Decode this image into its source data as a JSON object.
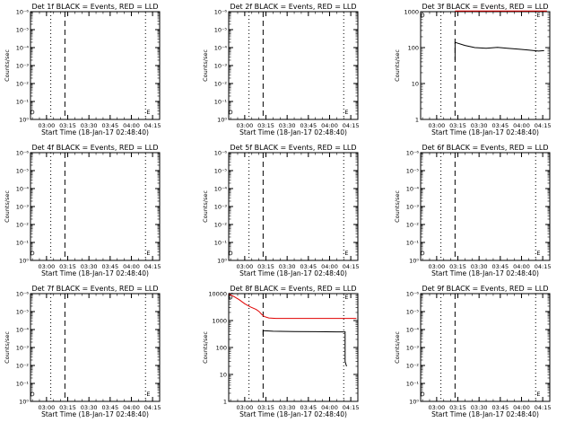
{
  "charts": [
    {
      "id": "det1f",
      "title": "Det 1f BLACK = Events, RED = LLD",
      "yscale": "log-exponent",
      "yticks": [
        "10⁰",
        "10⁻¹",
        "10⁻²",
        "10⁻³",
        "10⁻⁴",
        "10⁻⁵",
        "10⁻⁶"
      ],
      "ylabel": "Counts/sec",
      "xticks": [
        "03:00",
        "03:15",
        "03:30",
        "03:45",
        "04:00",
        "04:15"
      ],
      "xlabel": "Start Time (18-Jan-17 02:48:40)",
      "markers": [
        {
          "letter": "D",
          "time": "02:50"
        },
        {
          "letter": "E",
          "time": "04:12"
        }
      ],
      "vlines": [
        {
          "style": "dotted",
          "time": "03:03"
        },
        {
          "style": "dashed",
          "time": "03:13"
        },
        {
          "style": "dotted",
          "time": "04:10"
        }
      ],
      "series": []
    },
    {
      "id": "det2f",
      "title": "Det 2f BLACK = Events, RED = LLD",
      "yscale": "log-exponent",
      "yticks": [
        "10⁰",
        "10⁻¹",
        "10⁻²",
        "10⁻³",
        "10⁻⁴",
        "10⁻⁵",
        "10⁻⁶"
      ],
      "ylabel": "Counts/sec",
      "xticks": [
        "03:00",
        "03:15",
        "03:30",
        "03:45",
        "04:00",
        "04:15"
      ],
      "xlabel": "Start Time (18-Jan-17 02:48:40)",
      "markers": [
        {
          "letter": "D",
          "time": "02:50"
        },
        {
          "letter": "E",
          "time": "04:12"
        }
      ],
      "vlines": [
        {
          "style": "dotted",
          "time": "03:03"
        },
        {
          "style": "dashed",
          "time": "03:13"
        },
        {
          "style": "dotted",
          "time": "04:10"
        }
      ],
      "series": []
    },
    {
      "id": "det3f",
      "title": "Det 3f BLACK = Events, RED = LLD",
      "yscale": "log-value",
      "yticks": [
        "1",
        "10",
        "100",
        "1000"
      ],
      "ylabel": "Counts/sec",
      "xticks": [
        "03:00",
        "03:15",
        "03:30",
        "03:45",
        "04:00",
        "04:15"
      ],
      "xlabel": "Start Time (18-Jan-17 02:48:40)",
      "markers": [
        {
          "letter": "D",
          "time": "02:50"
        },
        {
          "letter": "E",
          "time": "04:12"
        }
      ],
      "vlines": [
        {
          "style": "dotted",
          "time": "03:03"
        },
        {
          "style": "dashed",
          "time": "03:13"
        },
        {
          "style": "dotted",
          "time": "04:10"
        }
      ],
      "series": [
        {
          "color": "#e00000",
          "points": [
            [
              "03:13",
              1050
            ],
            [
              "04:18",
              1050
            ]
          ]
        },
        {
          "color": "#000000",
          "points": [
            [
              "03:13",
              45
            ],
            [
              "03:13",
              140
            ],
            [
              "03:20",
              115
            ],
            [
              "03:27",
              100
            ],
            [
              "03:35",
              96
            ],
            [
              "03:43",
              102
            ],
            [
              "03:50",
              96
            ],
            [
              "03:58",
              90
            ],
            [
              "04:05",
              85
            ],
            [
              "04:12",
              80
            ],
            [
              "04:16",
              82
            ]
          ]
        }
      ]
    },
    {
      "id": "det4f",
      "title": "Det 4f BLACK = Events, RED = LLD",
      "yscale": "log-exponent",
      "yticks": [
        "10⁰",
        "10⁻¹",
        "10⁻²",
        "10⁻³",
        "10⁻⁴",
        "10⁻⁵",
        "10⁻⁶"
      ],
      "ylabel": "Counts/sec",
      "xticks": [
        "03:00",
        "03:15",
        "03:30",
        "03:45",
        "04:00",
        "04:15"
      ],
      "xlabel": "Start Time (18-Jan-17 02:48:40)",
      "markers": [
        {
          "letter": "D",
          "time": "02:50"
        },
        {
          "letter": "E",
          "time": "04:12"
        }
      ],
      "vlines": [
        {
          "style": "dotted",
          "time": "03:03"
        },
        {
          "style": "dashed",
          "time": "03:13"
        },
        {
          "style": "dotted",
          "time": "04:10"
        }
      ],
      "series": []
    },
    {
      "id": "det5f",
      "title": "Det 5f BLACK = Events, RED = LLD",
      "yscale": "log-exponent",
      "yticks": [
        "10⁰",
        "10⁻¹",
        "10⁻²",
        "10⁻³",
        "10⁻⁴",
        "10⁻⁵",
        "10⁻⁶"
      ],
      "ylabel": "Counts/sec",
      "xticks": [
        "03:00",
        "03:15",
        "03:30",
        "03:45",
        "04:00",
        "04:15"
      ],
      "xlabel": "Start Time (18-Jan-17 02:48:40)",
      "markers": [
        {
          "letter": "D",
          "time": "02:50"
        },
        {
          "letter": "E",
          "time": "04:12"
        }
      ],
      "vlines": [
        {
          "style": "dotted",
          "time": "03:03"
        },
        {
          "style": "dashed",
          "time": "03:13"
        },
        {
          "style": "dotted",
          "time": "04:10"
        }
      ],
      "series": []
    },
    {
      "id": "det6f",
      "title": "Det 6f BLACK = Events, RED = LLD",
      "yscale": "log-exponent",
      "yticks": [
        "10⁰",
        "10⁻¹",
        "10⁻²",
        "10⁻³",
        "10⁻⁴",
        "10⁻⁵",
        "10⁻⁶"
      ],
      "ylabel": "Counts/sec",
      "xticks": [
        "03:00",
        "03:15",
        "03:30",
        "03:45",
        "04:00",
        "04:15"
      ],
      "xlabel": "Start Time (18-Jan-17 02:48:40)",
      "markers": [
        {
          "letter": "D",
          "time": "02:50"
        },
        {
          "letter": "E",
          "time": "04:12"
        }
      ],
      "vlines": [
        {
          "style": "dotted",
          "time": "03:03"
        },
        {
          "style": "dashed",
          "time": "03:13"
        },
        {
          "style": "dotted",
          "time": "04:10"
        }
      ],
      "series": []
    },
    {
      "id": "det7f",
      "title": "Det 7f BLACK = Events, RED = LLD",
      "yscale": "log-exponent",
      "yticks": [
        "10⁰",
        "10⁻¹",
        "10⁻²",
        "10⁻³",
        "10⁻⁴",
        "10⁻⁵",
        "10⁻⁶"
      ],
      "ylabel": "Counts/sec",
      "xticks": [
        "03:00",
        "03:15",
        "03:30",
        "03:45",
        "04:00",
        "04:15"
      ],
      "xlabel": "Start Time (18-Jan-17 02:48:40)",
      "markers": [
        {
          "letter": "D",
          "time": "02:50"
        },
        {
          "letter": "E",
          "time": "04:12"
        }
      ],
      "vlines": [
        {
          "style": "dotted",
          "time": "03:03"
        },
        {
          "style": "dashed",
          "time": "03:13"
        },
        {
          "style": "dotted",
          "time": "04:10"
        }
      ],
      "series": []
    },
    {
      "id": "det8f",
      "title": "Det 8f BLACK = Events, RED = LLD",
      "yscale": "log-value",
      "yticks": [
        "1",
        "10",
        "100",
        "1000",
        "10000"
      ],
      "ylabel": "Counts/sec",
      "xticks": [
        "03:00",
        "03:15",
        "03:30",
        "03:45",
        "04:00",
        "04:15"
      ],
      "xlabel": "Start Time (18-Jan-17 02:48:40)",
      "markers": [
        {
          "letter": "D",
          "time": "02:50"
        },
        {
          "letter": "E",
          "time": "04:12"
        }
      ],
      "vlines": [
        {
          "style": "dotted",
          "time": "03:03"
        },
        {
          "style": "dashed",
          "time": "03:13"
        },
        {
          "style": "dotted",
          "time": "04:10"
        }
      ],
      "series": [
        {
          "color": "#e00000",
          "points": [
            [
              "02:49",
              9500
            ],
            [
              "02:52",
              8000
            ],
            [
              "02:56",
              6000
            ],
            [
              "03:00",
              4200
            ],
            [
              "03:04",
              3200
            ],
            [
              "03:08",
              2600
            ],
            [
              "03:10",
              2200
            ],
            [
              "03:12",
              1700
            ],
            [
              "03:14",
              1400
            ],
            [
              "03:17",
              1250
            ],
            [
              "03:22",
              1200
            ],
            [
              "03:40",
              1200
            ],
            [
              "04:00",
              1200
            ],
            [
              "04:19",
              1200
            ]
          ]
        },
        {
          "color": "#000000",
          "points": [
            [
              "02:49",
              10500
            ],
            [
              "02:50",
              9800
            ],
            [
              "02:51",
              10300
            ],
            [
              "02:52",
              9600
            ]
          ]
        },
        {
          "color": "#000000",
          "points": [
            [
              "03:13",
              250
            ],
            [
              "03:13",
              420
            ],
            [
              "03:20",
              400
            ],
            [
              "03:35",
              390
            ],
            [
              "03:50",
              385
            ],
            [
              "04:05",
              380
            ],
            [
              "04:11",
              380
            ],
            [
              "04:11",
              30
            ],
            [
              "04:12",
              20
            ]
          ]
        }
      ]
    },
    {
      "id": "det9f",
      "title": "Det 9f BLACK = Events, RED = LLD",
      "yscale": "log-exponent",
      "yticks": [
        "10⁰",
        "10⁻¹",
        "10⁻²",
        "10⁻³",
        "10⁻⁴",
        "10⁻⁵",
        "10⁻⁶"
      ],
      "ylabel": "Counts/sec",
      "xticks": [
        "03:00",
        "03:15",
        "03:30",
        "03:45",
        "04:00",
        "04:15"
      ],
      "xlabel": "Start Time (18-Jan-17 02:48:40)",
      "markers": [
        {
          "letter": "D",
          "time": "02:50"
        },
        {
          "letter": "E",
          "time": "04:12"
        }
      ],
      "vlines": [
        {
          "style": "dotted",
          "time": "03:03"
        },
        {
          "style": "dashed",
          "time": "03:13"
        },
        {
          "style": "dotted",
          "time": "04:10"
        }
      ],
      "series": []
    }
  ]
}
